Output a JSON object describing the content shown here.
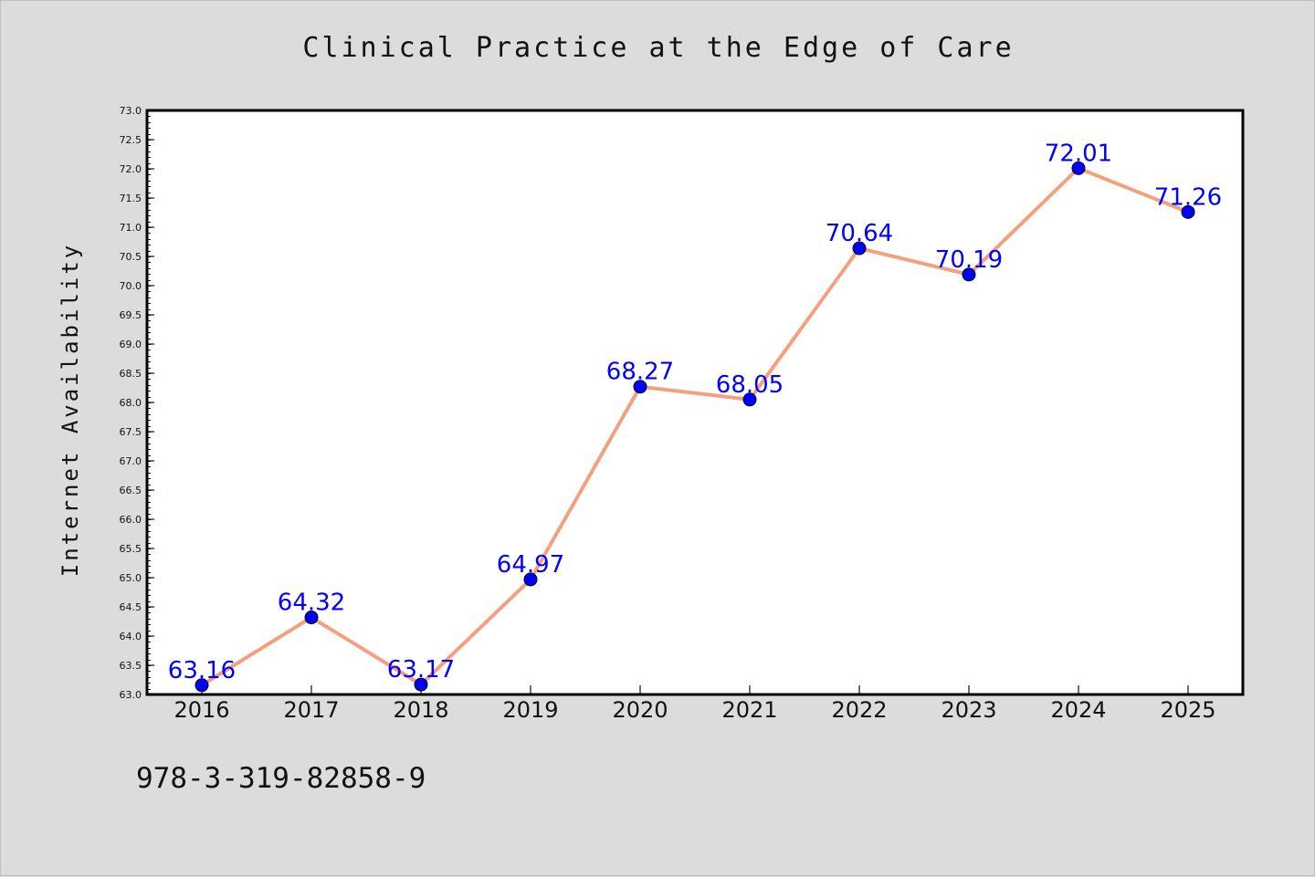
{
  "chart_data": {
    "type": "line",
    "title": "Clinical Practice at the Edge of Care",
    "xlabel": "",
    "ylabel": "Internet Availability",
    "categories": [
      "2016",
      "2017",
      "2018",
      "2019",
      "2020",
      "2021",
      "2022",
      "2023",
      "2024",
      "2025"
    ],
    "series": [
      {
        "values": [
          63.16,
          64.32,
          63.17,
          64.97,
          68.27,
          68.05,
          70.64,
          70.19,
          72.01,
          71.26
        ],
        "line_color": "#f4a07c",
        "marker_color": "#0000ff"
      }
    ],
    "ylim": [
      63.0,
      73.0
    ],
    "y_ticks": [
      "63.0",
      "63.5",
      "64.0",
      "64.5",
      "65.0",
      "65.5",
      "66.0",
      "66.5",
      "67.0",
      "67.5",
      "68.0",
      "68.5",
      "69.0",
      "69.5",
      "70.0",
      "70.5",
      "71.0",
      "71.5",
      "72.0",
      "72.5",
      "73.0"
    ],
    "data_labels": [
      "63.16",
      "64.32",
      "63.17",
      "64.97",
      "68.27",
      "68.05",
      "70.64",
      "70.19",
      "72.01",
      "71.26"
    ],
    "grid": false,
    "legend": "none",
    "label_color": "#0000ff"
  },
  "footer": {
    "code": "978-3-319-82858-9"
  },
  "colors": {
    "background": "#dcdcdc",
    "plot_background": "#ffffff"
  }
}
